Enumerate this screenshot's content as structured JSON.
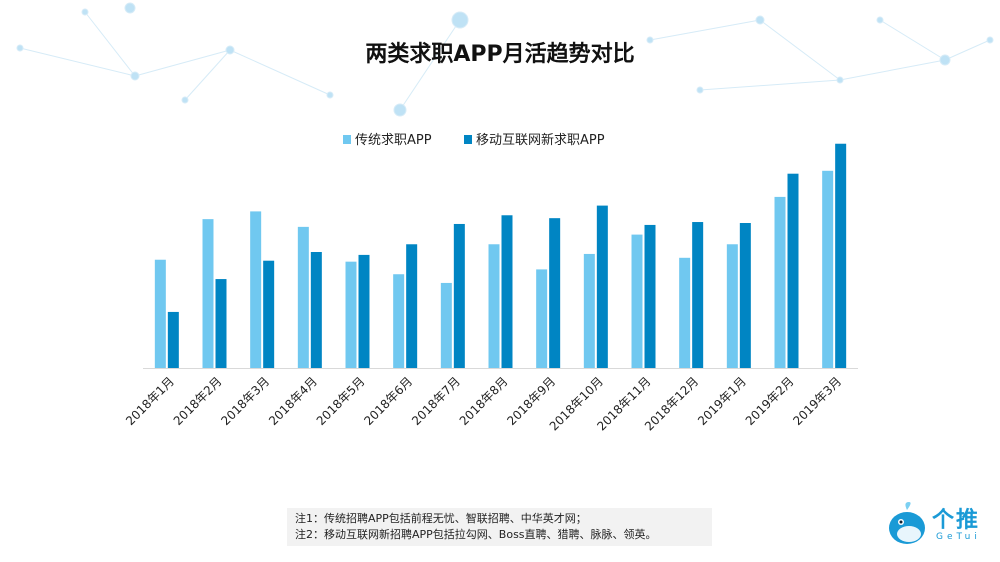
{
  "title": "两类求职APP月活趋势对比",
  "chart_data": {
    "type": "bar",
    "title": "两类求职APP月活趋势对比",
    "categories": [
      "2018年1月",
      "2018年2月",
      "2018年3月",
      "2018年4月",
      "2018年5月",
      "2018年6月",
      "2018年7月",
      "2018年8月",
      "2018年9月",
      "2018年10月",
      "2018年11月",
      "2018年12月",
      "2019年1月",
      "2019年2月",
      "2019年3月"
    ],
    "series": [
      {
        "name": "传统求职APP",
        "color": "#70c8f0",
        "values": [
          112,
          154,
          162,
          146,
          110,
          97,
          88,
          128,
          102,
          118,
          138,
          114,
          128,
          177,
          204
        ]
      },
      {
        "name": "移动互联网新求职APP",
        "color": "#0085c3",
        "values": [
          58,
          92,
          111,
          120,
          117,
          128,
          149,
          158,
          155,
          168,
          148,
          151,
          150,
          201,
          232
        ]
      }
    ],
    "ylim": [
      0,
      240
    ],
    "y_axis_shown": false,
    "grid": false,
    "legend_position": "top"
  },
  "notes": [
    "注1：传统招聘APP包括前程无忧、智联招聘、中华英才网；",
    "注2：移动互联网新招聘APP包括拉勾网、Boss直聘、猎聘、脉脉、领英。"
  ],
  "logo": {
    "name": "个推",
    "sub": "GeTui"
  }
}
